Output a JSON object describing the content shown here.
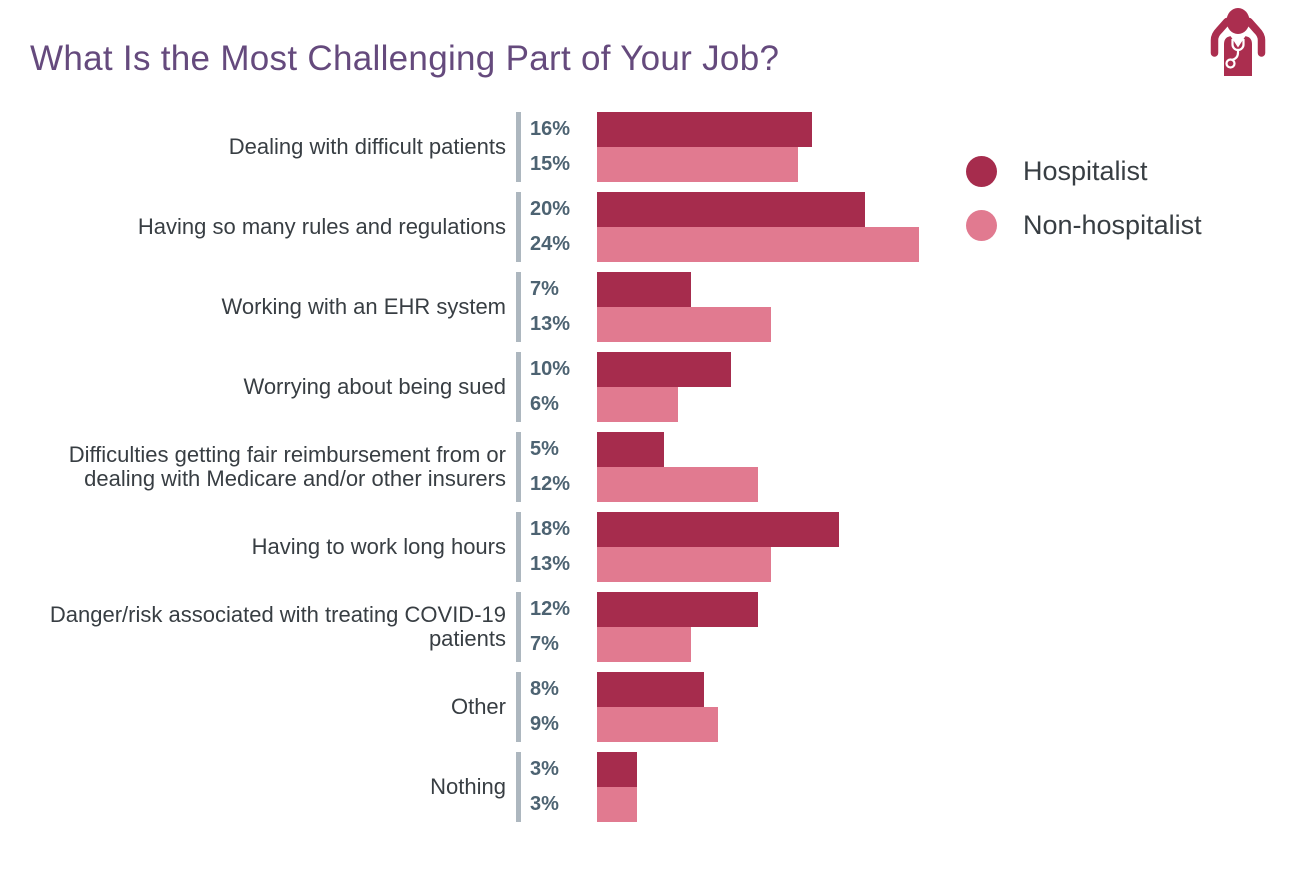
{
  "title": "What Is the Most Challenging Part of Your Job?",
  "icon": {
    "name": "frustrated-doctor-icon",
    "color": "#ab2e4f"
  },
  "colors": {
    "background": "#ffffff",
    "title_text": "#654a7d",
    "category_text": "#383e43",
    "value_text": "#4d6372",
    "axis_line": "#adb7bf",
    "hospitalist": "#a62c4d",
    "non_hospitalist": "#e17a90"
  },
  "legend": {
    "position": "right",
    "items": [
      {
        "label": "Hospitalist",
        "color": "#a62c4d"
      },
      {
        "label": "Non-hospitalist",
        "color": "#e17a90"
      }
    ]
  },
  "chart_data": {
    "type": "bar",
    "orientation": "horizontal",
    "unit": "%",
    "title": "What Is the Most Challenging Part of Your Job?",
    "categories": [
      "Dealing with difficult patients",
      "Having so many rules and regulations",
      "Working with an EHR system",
      "Worrying about being sued",
      "Difficulties getting fair reimbursement from or dealing with Medicare and/or other insurers",
      "Having to work long hours",
      "Danger/risk associated with treating COVID-19 patients",
      "Other",
      "Nothing"
    ],
    "series": [
      {
        "name": "Hospitalist",
        "values": [
          16,
          20,
          7,
          10,
          5,
          18,
          12,
          8,
          3
        ]
      },
      {
        "name": "Non-hospitalist",
        "values": [
          15,
          24,
          13,
          6,
          12,
          13,
          7,
          9,
          3
        ]
      }
    ],
    "value_labels": true,
    "xlim": [
      0,
      25
    ],
    "grid": false,
    "legend_position": "right"
  }
}
